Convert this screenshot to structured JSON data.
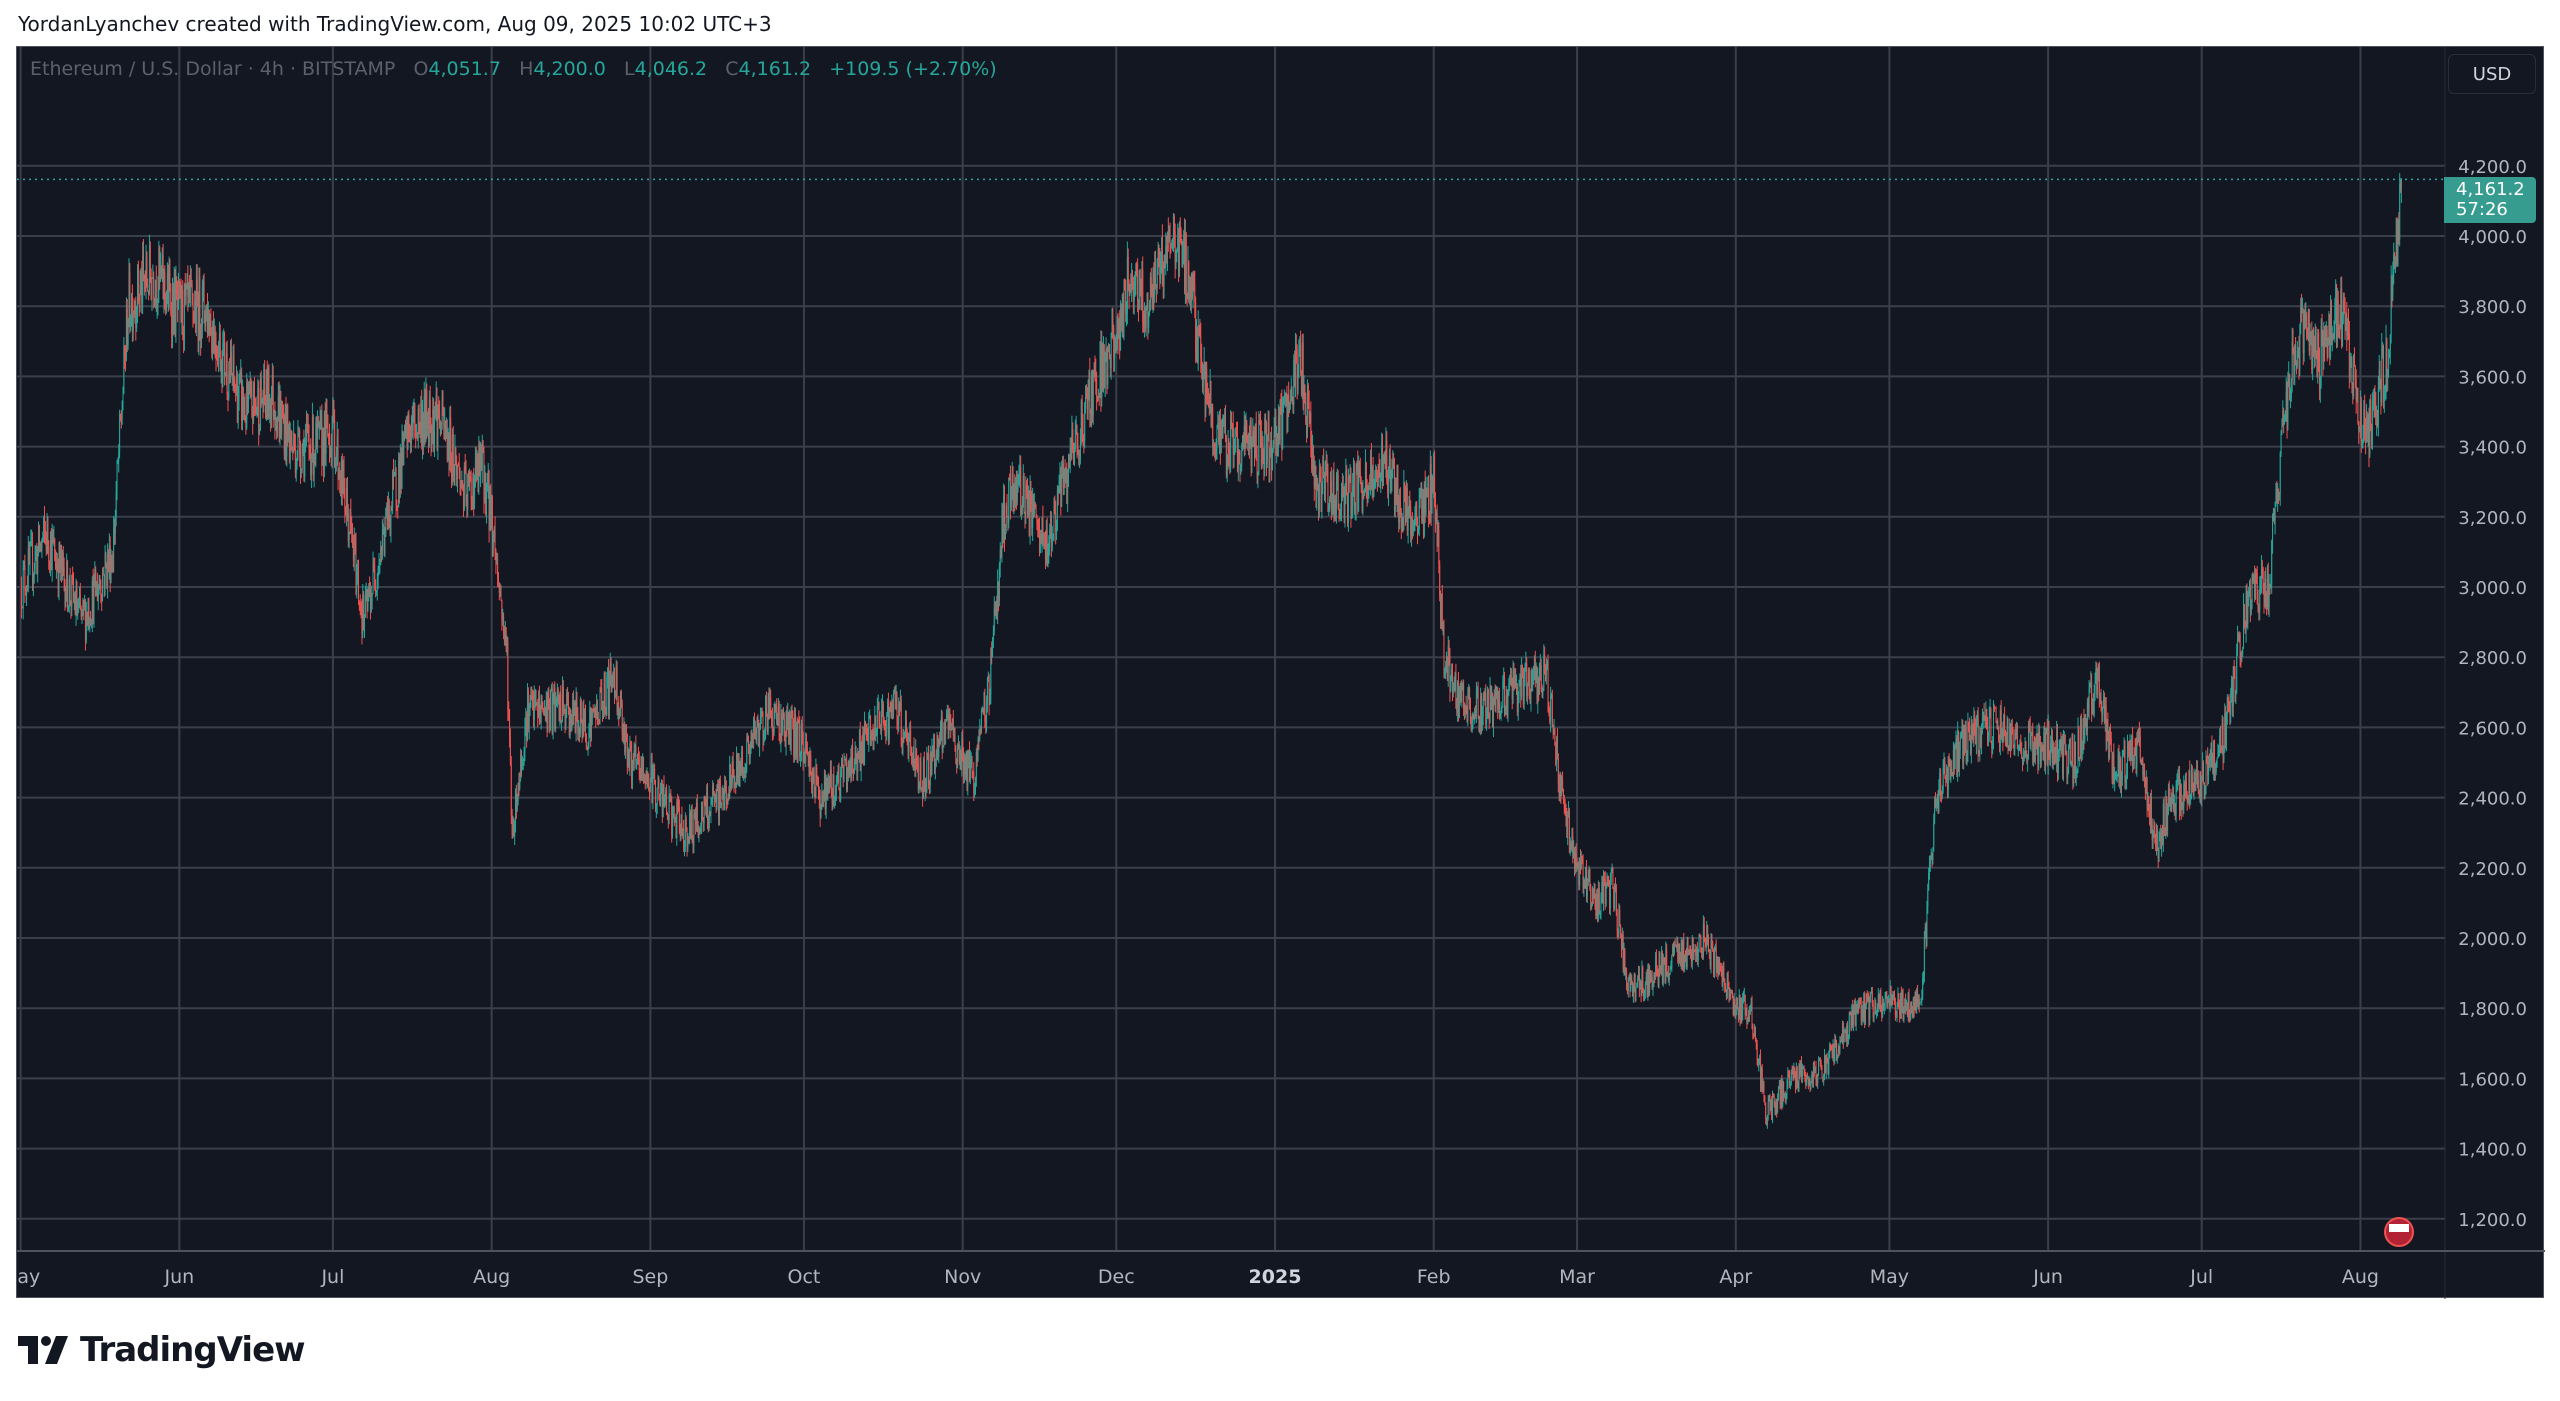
{
  "credit": "YordanLyanchev created with TradingView.com, Aug 09, 2025 10:02 UTC+3",
  "brand": "TradingView",
  "legend": {
    "symbol": "Ethereum / U.S. Dollar · 4h · BITSTAMP",
    "o_label": "O",
    "open": "4,051.7",
    "h_label": "H",
    "high": "4,200.0",
    "l_label": "L",
    "low": "4,046.2",
    "c_label": "C",
    "close": "4,161.2",
    "change": "+109.5 (+2.70%)"
  },
  "currency_button": "USD",
  "last_price": {
    "price": "4,161.2",
    "countdown": "57:26"
  },
  "colors": {
    "background": "#131722",
    "grid": "#3b3f4a",
    "up": "#26a69a",
    "down": "#ef5350",
    "last_price": "#359c8f"
  },
  "chart_data": {
    "type": "candlestick",
    "interval": "4h",
    "ylim": [
      1100,
      4400
    ],
    "grid": true,
    "y_ticks": [
      1200,
      1400,
      1600,
      1800,
      2000,
      2200,
      2400,
      2600,
      2800,
      3000,
      3200,
      3400,
      3600,
      3800,
      4000,
      4200
    ],
    "y_tick_labels": [
      "1,200.0",
      "1,400.0",
      "1,600.0",
      "1,800.0",
      "2,000.0",
      "2,200.0",
      "2,400.0",
      "2,600.0",
      "2,800.0",
      "3,000.0",
      "3,200.0",
      "3,400.0",
      "3,600.0",
      "3,800.0",
      "4,000.0",
      "4,200.0"
    ],
    "x_ticks": [
      "2024-05-01",
      "2024-06-01",
      "2024-07-01",
      "2024-08-01",
      "2024-09-01",
      "2024-10-01",
      "2024-11-01",
      "2024-12-01",
      "2025-01-01",
      "2025-02-01",
      "2025-03-01",
      "2025-04-01",
      "2025-05-01",
      "2025-06-01",
      "2025-07-01",
      "2025-08-01"
    ],
    "x_tick_labels": [
      "May",
      "Jun",
      "Jul",
      "Aug",
      "Sep",
      "Oct",
      "Nov",
      "Dec",
      "2025",
      "Feb",
      "Mar",
      "Apr",
      "May",
      "Jun",
      "Jul",
      "Aug"
    ],
    "approx_closes": [
      [
        "2024-05-01",
        3000
      ],
      [
        "2024-05-06",
        3150
      ],
      [
        "2024-05-13",
        2900
      ],
      [
        "2024-05-19",
        3100
      ],
      [
        "2024-05-22",
        3800
      ],
      [
        "2024-05-27",
        3900
      ],
      [
        "2024-06-01",
        3780
      ],
      [
        "2024-06-06",
        3800
      ],
      [
        "2024-06-11",
        3600
      ],
      [
        "2024-06-14",
        3500
      ],
      [
        "2024-06-19",
        3550
      ],
      [
        "2024-06-23",
        3400
      ],
      [
        "2024-06-28",
        3400
      ],
      [
        "2024-07-01",
        3450
      ],
      [
        "2024-07-05",
        3100
      ],
      [
        "2024-07-07",
        2900
      ],
      [
        "2024-07-11",
        3150
      ],
      [
        "2024-07-16",
        3450
      ],
      [
        "2024-07-21",
        3500
      ],
      [
        "2024-07-24",
        3400
      ],
      [
        "2024-07-27",
        3250
      ],
      [
        "2024-07-30",
        3350
      ],
      [
        "2024-08-01",
        3200
      ],
      [
        "2024-08-04",
        2800
      ],
      [
        "2024-08-05",
        2300
      ],
      [
        "2024-08-08",
        2650
      ],
      [
        "2024-08-15",
        2650
      ],
      [
        "2024-08-20",
        2600
      ],
      [
        "2024-08-25",
        2750
      ],
      [
        "2024-08-28",
        2500
      ],
      [
        "2024-09-01",
        2450
      ],
      [
        "2024-09-05",
        2350
      ],
      [
        "2024-09-08",
        2300
      ],
      [
        "2024-09-15",
        2400
      ],
      [
        "2024-09-19",
        2500
      ],
      [
        "2024-09-24",
        2650
      ],
      [
        "2024-10-01",
        2550
      ],
      [
        "2024-10-04",
        2400
      ],
      [
        "2024-10-08",
        2450
      ],
      [
        "2024-10-15",
        2600
      ],
      [
        "2024-10-19",
        2650
      ],
      [
        "2024-10-24",
        2450
      ],
      [
        "2024-10-29",
        2600
      ],
      [
        "2024-11-03",
        2450
      ],
      [
        "2024-11-06",
        2700
      ],
      [
        "2024-11-09",
        3200
      ],
      [
        "2024-11-12",
        3300
      ],
      [
        "2024-11-17",
        3100
      ],
      [
        "2024-11-22",
        3350
      ],
      [
        "2024-11-27",
        3600
      ],
      [
        "2024-12-01",
        3700
      ],
      [
        "2024-12-04",
        3900
      ],
      [
        "2024-12-07",
        3800
      ],
      [
        "2024-12-12",
        4000
      ],
      [
        "2024-12-15",
        3900
      ],
      [
        "2024-12-18",
        3600
      ],
      [
        "2024-12-21",
        3400
      ],
      [
        "2024-12-26",
        3400
      ],
      [
        "2025-01-01",
        3400
      ],
      [
        "2025-01-06",
        3650
      ],
      [
        "2025-01-09",
        3300
      ],
      [
        "2025-01-14",
        3250
      ],
      [
        "2025-01-19",
        3300
      ],
      [
        "2025-01-23",
        3350
      ],
      [
        "2025-01-28",
        3150
      ],
      [
        "2025-02-01",
        3300
      ],
      [
        "2025-02-03",
        2800
      ],
      [
        "2025-02-07",
        2650
      ],
      [
        "2025-02-12",
        2650
      ],
      [
        "2025-02-16",
        2700
      ],
      [
        "2025-02-23",
        2750
      ],
      [
        "2025-02-26",
        2400
      ],
      [
        "2025-03-01",
        2200
      ],
      [
        "2025-03-05",
        2100
      ],
      [
        "2025-03-08",
        2150
      ],
      [
        "2025-03-11",
        1850
      ],
      [
        "2025-03-16",
        1900
      ],
      [
        "2025-03-21",
        1950
      ],
      [
        "2025-03-26",
        2000
      ],
      [
        "2025-03-29",
        1900
      ],
      [
        "2025-04-01",
        1800
      ],
      [
        "2025-04-04",
        1800
      ],
      [
        "2025-04-07",
        1500
      ],
      [
        "2025-04-12",
        1600
      ],
      [
        "2025-04-18",
        1620
      ],
      [
        "2025-04-25",
        1800
      ],
      [
        "2025-05-01",
        1820
      ],
      [
        "2025-05-07",
        1800
      ],
      [
        "2025-05-10",
        2400
      ],
      [
        "2025-05-15",
        2550
      ],
      [
        "2025-05-21",
        2600
      ],
      [
        "2025-05-28",
        2550
      ],
      [
        "2025-06-01",
        2550
      ],
      [
        "2025-06-06",
        2500
      ],
      [
        "2025-06-11",
        2750
      ],
      [
        "2025-06-14",
        2450
      ],
      [
        "2025-06-19",
        2550
      ],
      [
        "2025-06-22",
        2250
      ],
      [
        "2025-06-25",
        2400
      ],
      [
        "2025-07-01",
        2450
      ],
      [
        "2025-07-05",
        2550
      ],
      [
        "2025-07-10",
        2950
      ],
      [
        "2025-07-14",
        3000
      ],
      [
        "2025-07-18",
        3600
      ],
      [
        "2025-07-21",
        3750
      ],
      [
        "2025-07-24",
        3650
      ],
      [
        "2025-07-28",
        3800
      ],
      [
        "2025-08-01",
        3500
      ],
      [
        "2025-08-03",
        3450
      ],
      [
        "2025-08-06",
        3650
      ],
      [
        "2025-08-09",
        4161.2
      ]
    ]
  }
}
